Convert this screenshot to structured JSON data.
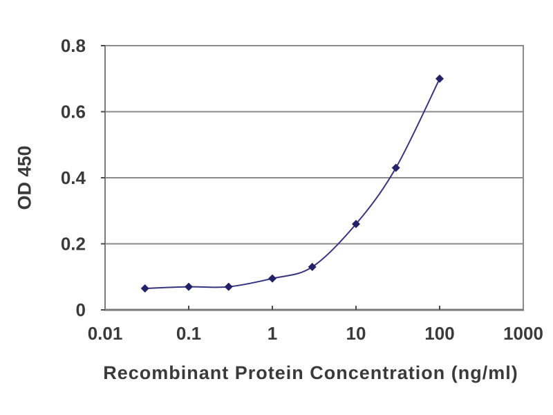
{
  "chart_data": {
    "type": "line",
    "xlabel": "Recombinant Protein Concentration (ng/ml)",
    "ylabel": "OD 450",
    "x_scale": "log10",
    "x": [
      0.03,
      0.1,
      0.3,
      1,
      3,
      10,
      30,
      100
    ],
    "y": [
      0.065,
      0.07,
      0.07,
      0.095,
      0.13,
      0.26,
      0.43,
      0.7
    ],
    "xlim": [
      0.01,
      1000
    ],
    "ylim": [
      0,
      0.8
    ],
    "x_ticks": [
      0.01,
      0.1,
      1,
      10,
      100,
      1000
    ],
    "x_tick_labels": [
      "0.01",
      "0.1",
      "1",
      "10",
      "100",
      "1000"
    ],
    "y_ticks": [
      0,
      0.2,
      0.4,
      0.6,
      0.8
    ],
    "y_tick_labels": [
      "0",
      "0.2",
      "0.4",
      "0.6",
      "0.8"
    ],
    "grid": "horizontal",
    "legend": "none",
    "marker": "diamond",
    "colors": {
      "line": "#34337f",
      "marker": "#232268",
      "grid": "#8a8a8a",
      "axis": "#7a7a7a",
      "tick": "#4a4a4a",
      "text": "#3a3a3a",
      "background": "#ffffff"
    }
  }
}
